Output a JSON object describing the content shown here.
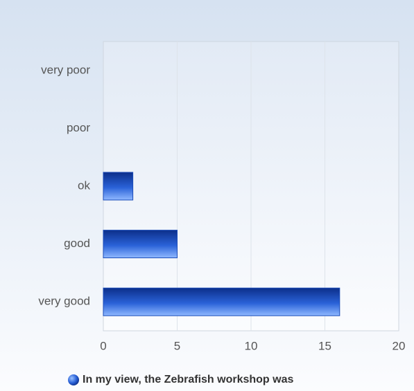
{
  "chart_data": {
    "type": "bar",
    "orientation": "horizontal",
    "categories": [
      "very poor",
      "poor",
      "ok",
      "good",
      "very good"
    ],
    "series": [
      {
        "name": "In my view, the Zebrafish workshop was",
        "color": "#2a62d8",
        "values": [
          0,
          0,
          2,
          5,
          16
        ]
      }
    ],
    "xlim": [
      0,
      20
    ],
    "xticks": [
      0,
      5,
      10,
      15,
      20
    ],
    "grid": true,
    "legend": "bottom"
  }
}
